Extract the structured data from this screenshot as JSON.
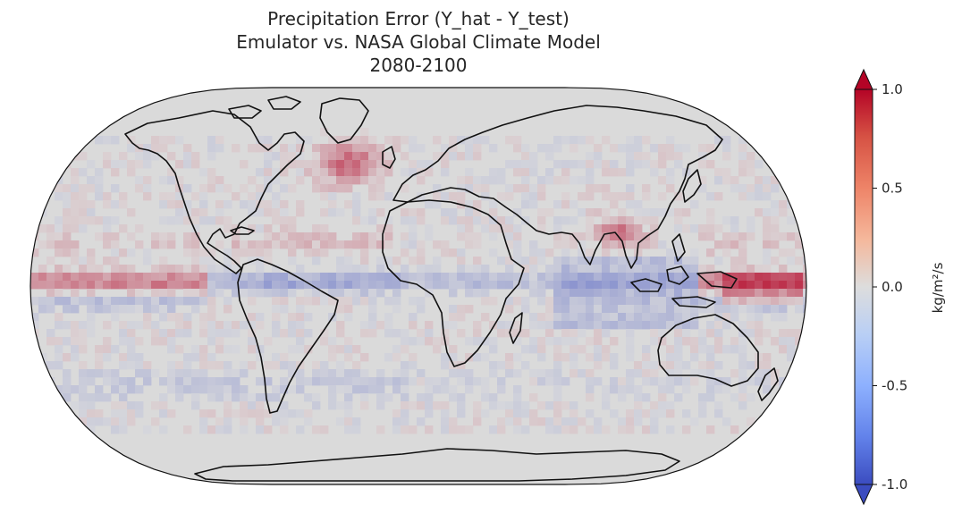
{
  "title": {
    "line1": "Precipitation Error (Y_hat - Y_test)",
    "line2": "Emulator vs. NASA Global Climate Model",
    "line3": "2080-2100"
  },
  "map": {
    "projection": "Robinson",
    "field": "precipitation error",
    "colormap": "coolwarm",
    "vmin": -1.0,
    "vmax": 1.0,
    "coastlines": true
  },
  "colorbar": {
    "label": "kg/m²/s",
    "extend": "both",
    "ticks": [
      "1.0",
      "0.5",
      "0.0",
      "-0.5",
      "-1.0"
    ],
    "tick_values": [
      1.0,
      0.5,
      0.0,
      -0.5,
      -1.0
    ],
    "colors": {
      "min": "#3b4cc0",
      "mid": "#dddddd",
      "max": "#b40426"
    }
  }
}
